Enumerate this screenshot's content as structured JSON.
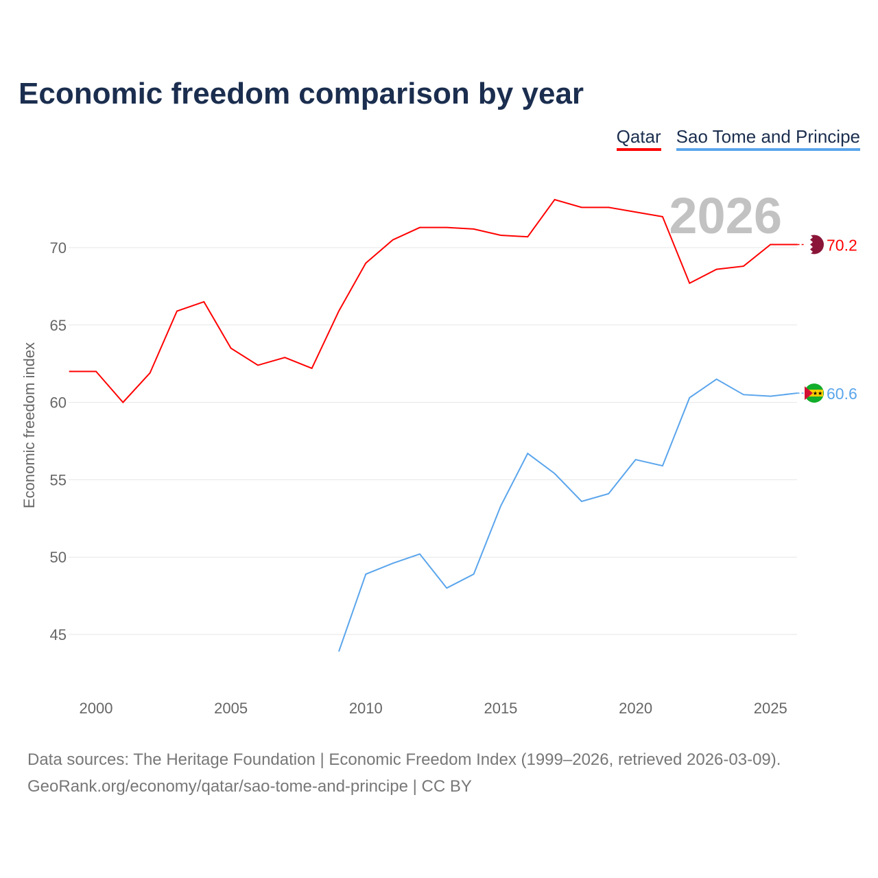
{
  "title": "Economic freedom comparison by year",
  "source_line1": "Data sources: The Heritage Foundation | Economic Freedom Index (1999–2026, retrieved 2026-03-09).",
  "source_line2": "GeoRank.org/economy/qatar/sao-tome-and-principe | CC BY",
  "chart_data": {
    "type": "line",
    "title": "Economic freedom comparison by year",
    "ylabel": "Economic freedom index",
    "xlabel": "",
    "year_label": "2026",
    "xlim": [
      1999,
      2026
    ],
    "ylim": [
      42.5,
      75
    ],
    "xticks": [
      2000,
      2005,
      2010,
      2015,
      2020,
      2025
    ],
    "yticks": [
      45,
      50,
      55,
      60,
      65,
      70
    ],
    "grid": true,
    "legend_position": "top-right",
    "series": [
      {
        "name": "Qatar",
        "color": "#ff0000",
        "end_label": "70.2",
        "x": [
          1999,
          2000,
          2001,
          2002,
          2003,
          2004,
          2005,
          2006,
          2007,
          2008,
          2009,
          2010,
          2011,
          2012,
          2013,
          2014,
          2015,
          2016,
          2017,
          2018,
          2019,
          2020,
          2021,
          2022,
          2023,
          2024,
          2025,
          2026
        ],
        "values": [
          62.0,
          62.0,
          60.0,
          61.9,
          65.9,
          66.5,
          63.5,
          62.4,
          62.9,
          62.2,
          65.9,
          69.0,
          70.5,
          71.3,
          71.3,
          71.2,
          70.8,
          70.7,
          73.1,
          72.6,
          72.6,
          72.3,
          72.0,
          67.7,
          68.6,
          68.8,
          70.2,
          70.2
        ]
      },
      {
        "name": "Sao Tome and Principe",
        "color": "#5aa5ec",
        "end_label": "60.6",
        "x": [
          2009,
          2010,
          2011,
          2012,
          2013,
          2014,
          2015,
          2016,
          2017,
          2018,
          2019,
          2020,
          2021,
          2022,
          2023,
          2024,
          2025,
          2026
        ],
        "values": [
          43.9,
          48.9,
          49.6,
          50.2,
          48.0,
          48.9,
          53.3,
          56.7,
          55.4,
          53.6,
          54.1,
          56.3,
          55.9,
          60.3,
          61.5,
          60.5,
          60.4,
          60.6
        ]
      }
    ]
  }
}
